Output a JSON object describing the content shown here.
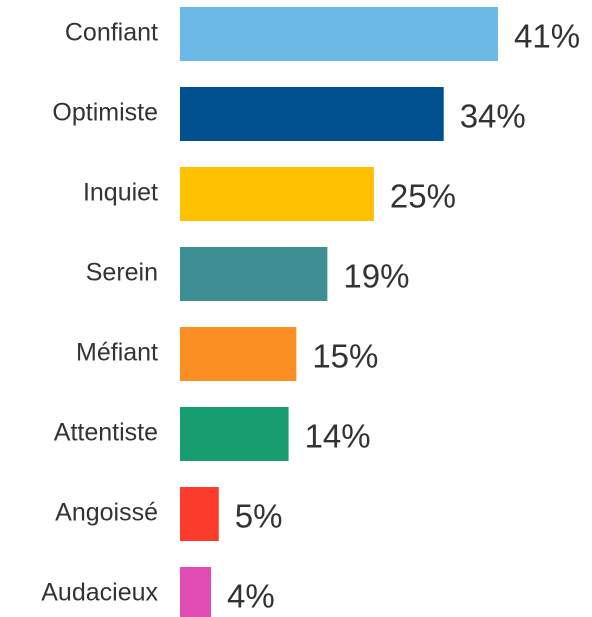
{
  "chart_data": {
    "type": "bar",
    "orientation": "horizontal",
    "categories": [
      "Confiant",
      "Optimiste",
      "Inquiet",
      "Serein",
      "Méfiant",
      "Attentiste",
      "Angoissé",
      "Audacieux"
    ],
    "values": [
      41,
      34,
      25,
      19,
      15,
      14,
      5,
      4
    ],
    "value_labels": [
      "41%",
      "34%",
      "25%",
      "19%",
      "15%",
      "14%",
      "5%",
      "4%"
    ],
    "colors": [
      "#6cb9e8",
      "#00508f",
      "#ffc000",
      "#3d8f94",
      "#fb8f24",
      "#169c6e",
      "#fb3b2b",
      "#e04cb4"
    ]
  }
}
